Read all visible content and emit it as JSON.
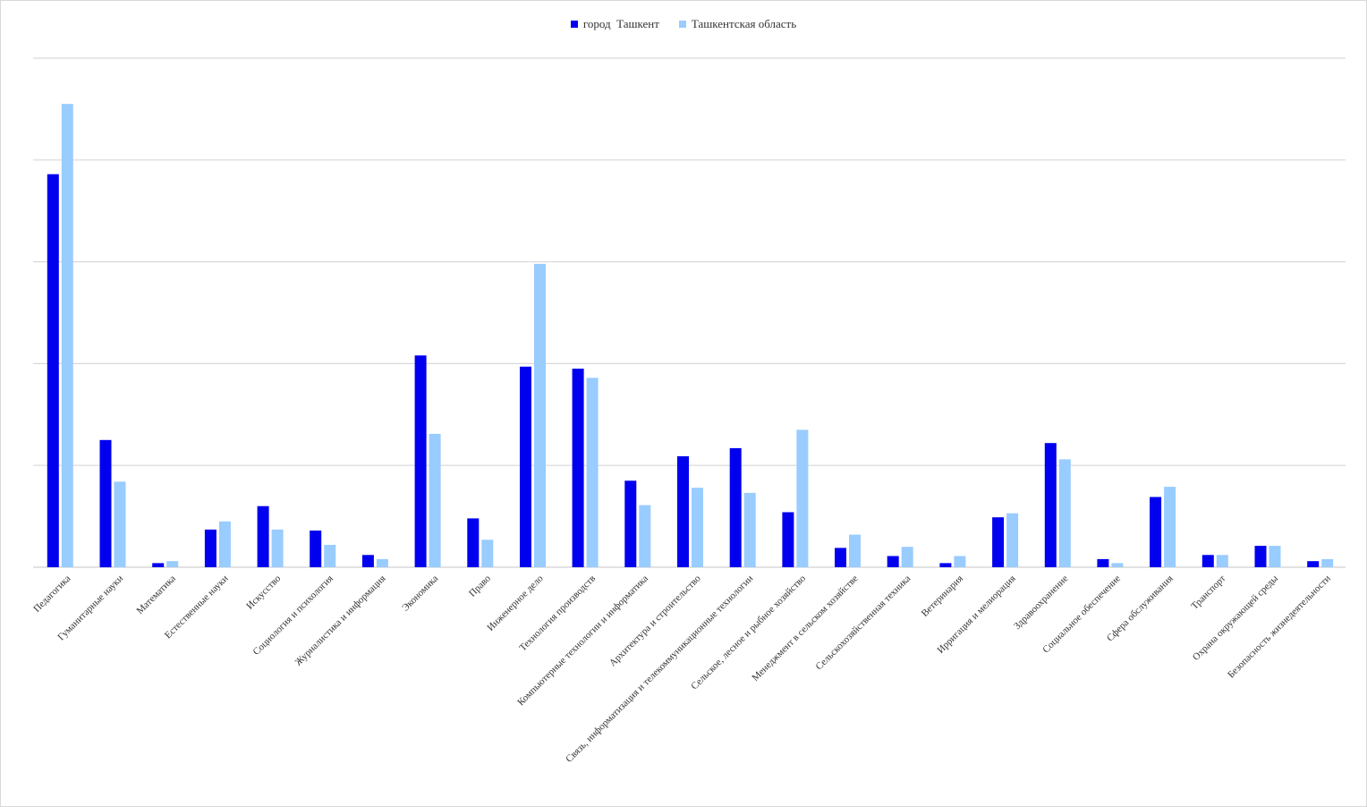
{
  "chart_data": {
    "type": "bar",
    "title": "",
    "xlabel": "",
    "ylabel": "",
    "ylim": [
      0,
      50
    ],
    "y_gridlines": [
      0,
      10,
      20,
      30,
      40,
      50
    ],
    "y_tick_labels_shown": false,
    "grid": true,
    "legend_position": "top-center",
    "categories": [
      "Педагогика",
      "Гуманитарные науки",
      "Математика",
      "Естественные науки",
      "Искусство",
      "Социология и психология",
      "Журналистика и информация",
      "Экономика",
      "Право",
      "Инженерное дело",
      "Технология производств",
      "Компьютерные технологии и информатика",
      "Архитектура и строительство",
      "Связь, информатизация и телекоммуникационные технологии",
      "Сельское, лесное и рыбное хозяйство",
      "Менеджмент в сельском хозяйстве",
      "Сельскохозяйственная техника",
      "Ветеринария",
      "Ирригация и мелиорация",
      "Здравоохранение",
      "Социальное обеспечение",
      "Сфера обслуживания",
      "Транспорт",
      "Охрана окружающей среды",
      "Безопасность жизнедеятельности"
    ],
    "series": [
      {
        "name": "город  Ташкент",
        "color": "#0000ee",
        "values": [
          38.6,
          12.5,
          0.4,
          3.7,
          6.0,
          3.6,
          1.2,
          20.8,
          4.8,
          19.7,
          19.5,
          8.5,
          10.9,
          11.7,
          5.4,
          1.9,
          1.1,
          0.4,
          4.9,
          12.2,
          0.8,
          6.9,
          1.2,
          2.1,
          0.6
        ]
      },
      {
        "name": "Ташкентская область",
        "color": "#99ccff",
        "values": [
          45.5,
          8.4,
          0.6,
          4.5,
          3.7,
          2.2,
          0.8,
          13.1,
          2.7,
          29.8,
          18.6,
          6.1,
          7.8,
          7.3,
          13.5,
          3.2,
          2.0,
          1.1,
          5.3,
          10.6,
          0.4,
          7.9,
          1.2,
          2.1,
          0.8
        ]
      }
    ]
  }
}
